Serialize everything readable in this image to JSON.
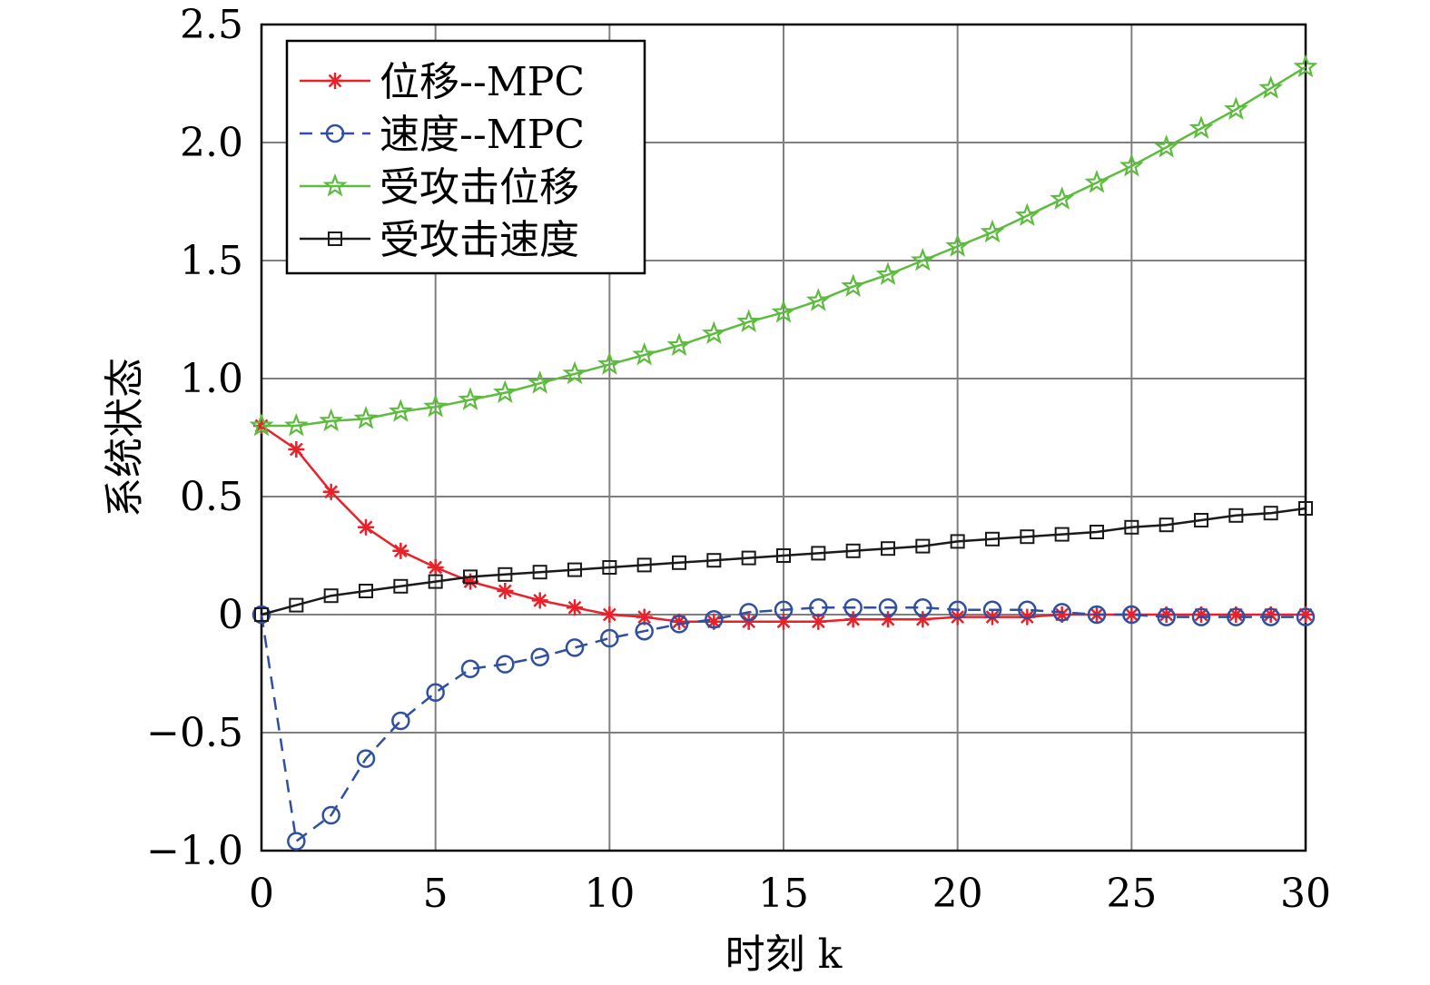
{
  "chart_data": {
    "type": "line",
    "xlabel": "时刻 k",
    "ylabel": "系统状态",
    "xlim": [
      0,
      30
    ],
    "ylim": [
      -1.0,
      2.5
    ],
    "xticks": [
      0,
      5,
      10,
      15,
      20,
      25,
      30
    ],
    "xtick_labels": [
      "0",
      "5",
      "10",
      "15",
      "20",
      "25",
      "30"
    ],
    "yticks": [
      -1.0,
      -0.5,
      0,
      0.5,
      1.0,
      1.5,
      2.0,
      2.5
    ],
    "ytick_labels": [
      "−1.0",
      "−0.5",
      "0",
      "0.5",
      "1.0",
      "1.5",
      "2.0",
      "2.5"
    ],
    "grid": true,
    "legend_position": "top-left",
    "x": [
      0,
      1,
      2,
      3,
      4,
      5,
      6,
      7,
      8,
      9,
      10,
      11,
      12,
      13,
      14,
      15,
      16,
      17,
      18,
      19,
      20,
      21,
      22,
      23,
      24,
      25,
      26,
      27,
      28,
      29,
      30
    ],
    "series": [
      {
        "name": "位移--MPC",
        "color": "#e8212a",
        "marker": "asterisk",
        "line": "solid",
        "values": [
          0.8,
          0.7,
          0.52,
          0.37,
          0.27,
          0.2,
          0.14,
          0.1,
          0.06,
          0.03,
          0.0,
          -0.01,
          -0.03,
          -0.03,
          -0.03,
          -0.03,
          -0.03,
          -0.02,
          -0.02,
          -0.02,
          -0.01,
          -0.01,
          -0.01,
          0.0,
          0.0,
          0.0,
          0.0,
          0.0,
          0.0,
          0.0,
          0.0
        ]
      },
      {
        "name": "速度--MPC",
        "color": "#2f4fa0",
        "marker": "circle",
        "line": "dashed",
        "values": [
          0.0,
          -0.96,
          -0.85,
          -0.61,
          -0.45,
          -0.33,
          -0.23,
          -0.21,
          -0.18,
          -0.14,
          -0.1,
          -0.07,
          -0.04,
          -0.02,
          0.01,
          0.02,
          0.03,
          0.03,
          0.03,
          0.03,
          0.02,
          0.02,
          0.02,
          0.01,
          0.0,
          0.0,
          -0.01,
          -0.01,
          -0.01,
          -0.01,
          -0.01
        ]
      },
      {
        "name": "受攻击位移",
        "color": "#5dbb3f",
        "marker": "star",
        "line": "solid",
        "values": [
          0.8,
          0.8,
          0.82,
          0.83,
          0.86,
          0.88,
          0.91,
          0.94,
          0.98,
          1.02,
          1.06,
          1.1,
          1.14,
          1.19,
          1.24,
          1.28,
          1.33,
          1.39,
          1.44,
          1.5,
          1.56,
          1.62,
          1.69,
          1.76,
          1.83,
          1.9,
          1.98,
          2.06,
          2.14,
          2.23,
          2.32
        ]
      },
      {
        "name": "受攻击速度",
        "color": "#1a1a1a",
        "marker": "square",
        "line": "solid",
        "values": [
          0.0,
          0.04,
          0.08,
          0.1,
          0.12,
          0.14,
          0.16,
          0.17,
          0.18,
          0.19,
          0.2,
          0.21,
          0.22,
          0.23,
          0.24,
          0.25,
          0.26,
          0.27,
          0.28,
          0.29,
          0.31,
          0.32,
          0.33,
          0.34,
          0.35,
          0.37,
          0.38,
          0.4,
          0.42,
          0.43,
          0.45
        ]
      }
    ]
  }
}
